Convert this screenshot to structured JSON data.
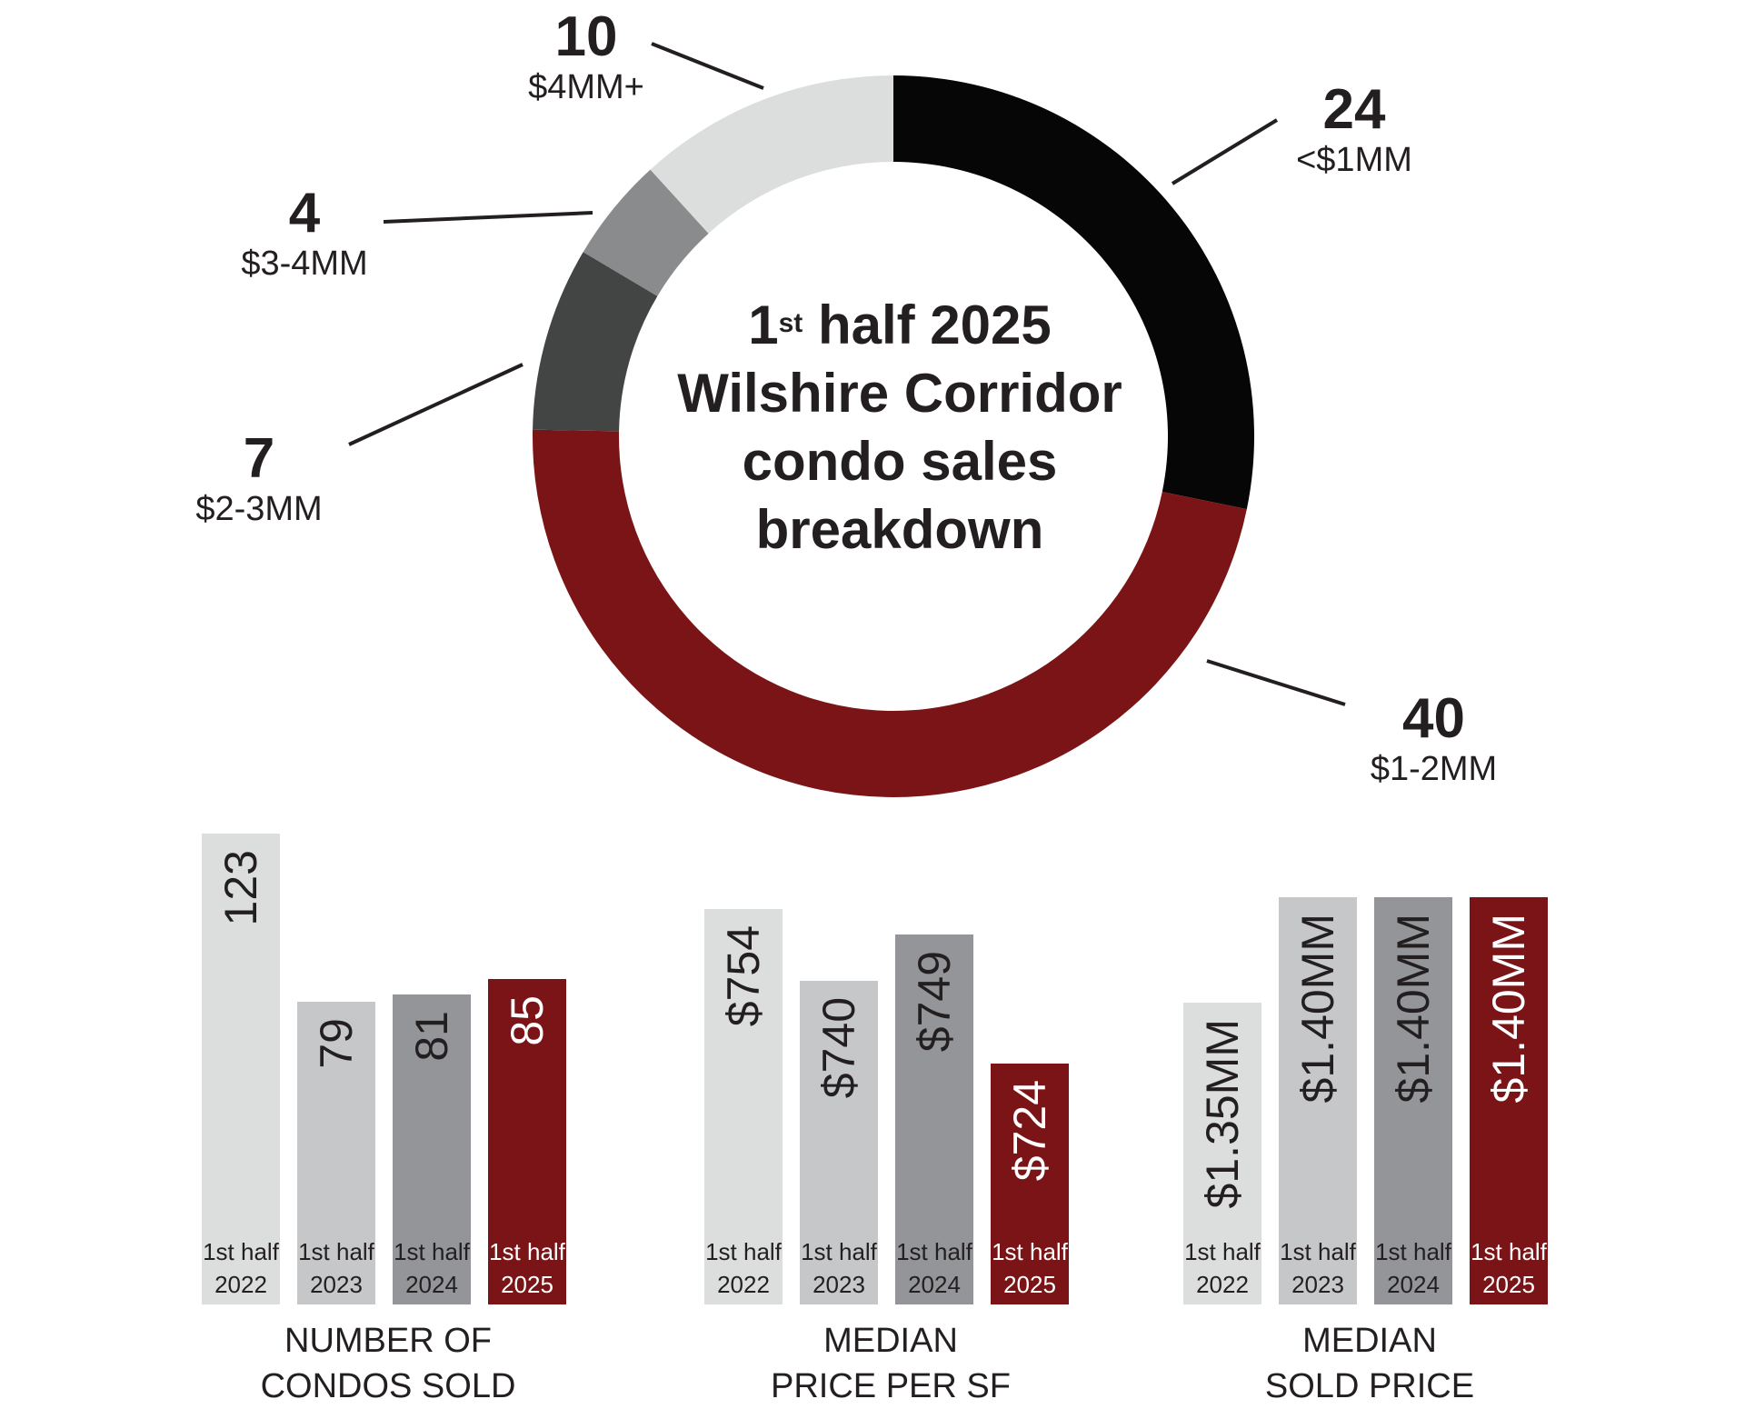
{
  "title_line1_main": "1",
  "title_line1_sup": "st",
  "title_line1_rest": "half 2025",
  "title_line2": "Wilshire Corridor",
  "title_line3": "condo sales",
  "title_line4": "breakdown",
  "colors": {
    "black": "#060606",
    "maroon": "#7a1416",
    "dark_gray": "#434444",
    "mid_gray": "#8a8b8c",
    "light_gray": "#dcdddd",
    "bar_light": "#dcdddd",
    "bar_silver": "#c6c7c8",
    "bar_gray": "#949598",
    "bar_maroon": "#7a1416"
  },
  "chart_data": [
    {
      "type": "pie",
      "donut": true,
      "slices": [
        {
          "label": "<$1MM",
          "value": 24
        },
        {
          "label": "$1-2MM",
          "value": 40
        },
        {
          "label": "$2-3MM",
          "value": 7
        },
        {
          "label": "$3-4MM",
          "value": 4
        },
        {
          "label": "$4MM+",
          "value": 10
        }
      ]
    },
    {
      "type": "bar",
      "title": "NUMBER OF CONDOS SOLD",
      "title_lines": [
        "NUMBER OF",
        "CONDOS SOLD"
      ],
      "categories": [
        [
          "1st half",
          "2022"
        ],
        [
          "1st half",
          "2023"
        ],
        [
          "1st half",
          "2024"
        ],
        [
          "1st half",
          "2025"
        ]
      ],
      "values": [
        123,
        79,
        81,
        85
      ],
      "value_labels": [
        "123",
        "79",
        "81",
        "85"
      ],
      "ylim": [
        0,
        123
      ]
    },
    {
      "type": "bar",
      "title": "MEDIAN PRICE PER SF",
      "title_lines": [
        "MEDIAN",
        "PRICE PER SF"
      ],
      "categories": [
        [
          "1st half",
          "2022"
        ],
        [
          "1st half",
          "2023"
        ],
        [
          "1st half",
          "2024"
        ],
        [
          "1st half",
          "2025"
        ]
      ],
      "values": [
        754,
        740,
        749,
        724
      ],
      "value_labels": [
        "$754",
        "$740",
        "$749",
        "$724"
      ]
    },
    {
      "type": "bar",
      "title": "MEDIAN SOLD PRICE",
      "title_lines": [
        "MEDIAN",
        "SOLD PRICE"
      ],
      "categories": [
        [
          "1st half",
          "2022"
        ],
        [
          "1st half",
          "2023"
        ],
        [
          "1st half",
          "2024"
        ],
        [
          "1st half",
          "2025"
        ]
      ],
      "values": [
        1.35,
        1.4,
        1.4,
        1.4
      ],
      "value_labels": [
        "$1.35MM",
        "$1.40MM",
        "$1.40MM",
        "$1.40MM"
      ]
    }
  ]
}
